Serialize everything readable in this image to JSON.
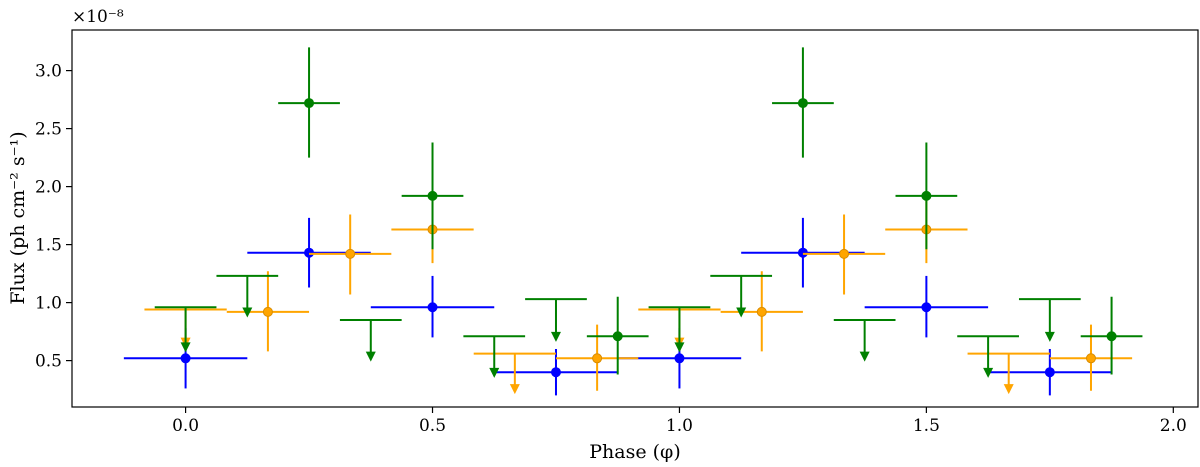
{
  "chart_data": {
    "type": "scatter",
    "title": "",
    "xlabel": "Phase (φ)",
    "ylabel": "Flux (ph cm⁻² s⁻¹)",
    "y_multiplier_label": "×10⁻⁸",
    "xlim": [
      -0.23,
      2.05
    ],
    "ylim": [
      0.1,
      3.35
    ],
    "x_ticks": [
      0.0,
      0.5,
      1.0,
      1.5,
      2.0
    ],
    "x_tick_labels": [
      "0.0",
      "0.5",
      "1.0",
      "1.5",
      "2.0"
    ],
    "y_ticks": [
      0.5,
      1.0,
      1.5,
      2.0,
      2.5,
      3.0
    ],
    "y_tick_labels": [
      "0.5",
      "1.0",
      "1.5",
      "2.0",
      "2.5",
      "3.0"
    ],
    "grid": false,
    "series": [
      {
        "color": "#0000ff",
        "points": [
          {
            "x": 0.0,
            "xerr": 0.125,
            "y": 0.52,
            "ylo": 0.26,
            "yhi": 0.78
          },
          {
            "x": 0.25,
            "xerr": 0.125,
            "y": 1.43,
            "ylo": 1.13,
            "yhi": 1.73
          },
          {
            "x": 0.5,
            "xerr": 0.125,
            "y": 0.96,
            "ylo": 0.7,
            "yhi": 1.23
          },
          {
            "x": 0.75,
            "xerr": 0.125,
            "y": 0.4,
            "ylo": 0.2,
            "yhi": 0.6
          },
          {
            "x": 1.0,
            "xerr": 0.125,
            "y": 0.52,
            "ylo": 0.26,
            "yhi": 0.78
          },
          {
            "x": 1.25,
            "xerr": 0.125,
            "y": 1.43,
            "ylo": 1.13,
            "yhi": 1.73
          },
          {
            "x": 1.5,
            "xerr": 0.125,
            "y": 0.96,
            "ylo": 0.7,
            "yhi": 1.23
          },
          {
            "x": 1.75,
            "xerr": 0.125,
            "y": 0.4,
            "ylo": 0.2,
            "yhi": 0.6
          }
        ],
        "upper_limits": []
      },
      {
        "color": "#ffa500",
        "points": [
          {
            "x": 0.1667,
            "xerr": 0.0833,
            "y": 0.92,
            "ylo": 0.58,
            "yhi": 1.27
          },
          {
            "x": 0.3333,
            "xerr": 0.0833,
            "y": 1.42,
            "ylo": 1.07,
            "yhi": 1.76
          },
          {
            "x": 0.5,
            "xerr": 0.0833,
            "y": 1.63,
            "ylo": 1.34,
            "yhi": 1.93
          },
          {
            "x": 0.8333,
            "xerr": 0.0833,
            "y": 0.52,
            "ylo": 0.24,
            "yhi": 0.81
          },
          {
            "x": 1.1667,
            "xerr": 0.0833,
            "y": 0.92,
            "ylo": 0.58,
            "yhi": 1.27
          },
          {
            "x": 1.3333,
            "xerr": 0.0833,
            "y": 1.42,
            "ylo": 1.07,
            "yhi": 1.76
          },
          {
            "x": 1.5,
            "xerr": 0.0833,
            "y": 1.63,
            "ylo": 1.34,
            "yhi": 1.93
          },
          {
            "x": 1.8333,
            "xerr": 0.0833,
            "y": 0.52,
            "ylo": 0.24,
            "yhi": 0.81
          }
        ],
        "upper_limits": [
          {
            "x": 0.0,
            "xerr": 0.0833,
            "y": 0.94,
            "tip": 0.62
          },
          {
            "x": 0.6667,
            "xerr": 0.0833,
            "y": 0.56,
            "tip": 0.22
          },
          {
            "x": 1.0,
            "xerr": 0.0833,
            "y": 0.94,
            "tip": 0.62
          },
          {
            "x": 1.6667,
            "xerr": 0.0833,
            "y": 0.56,
            "tip": 0.22
          }
        ]
      },
      {
        "color": "#008000",
        "points": [
          {
            "x": 0.25,
            "xerr": 0.0625,
            "y": 2.72,
            "ylo": 2.25,
            "yhi": 3.2
          },
          {
            "x": 0.5,
            "xerr": 0.0625,
            "y": 1.92,
            "ylo": 1.46,
            "yhi": 2.38
          },
          {
            "x": 0.875,
            "xerr": 0.0625,
            "y": 0.71,
            "ylo": 0.38,
            "yhi": 1.05
          },
          {
            "x": 1.25,
            "xerr": 0.0625,
            "y": 2.72,
            "ylo": 2.25,
            "yhi": 3.2
          },
          {
            "x": 1.5,
            "xerr": 0.0625,
            "y": 1.92,
            "ylo": 1.46,
            "yhi": 2.38
          },
          {
            "x": 1.875,
            "xerr": 0.0625,
            "y": 0.71,
            "ylo": 0.38,
            "yhi": 1.05
          }
        ],
        "upper_limits": [
          {
            "x": 0.0,
            "xerr": 0.0625,
            "y": 0.96,
            "tip": 0.58
          },
          {
            "x": 0.125,
            "xerr": 0.0625,
            "y": 1.23,
            "tip": 0.88
          },
          {
            "x": 0.375,
            "xerr": 0.0625,
            "y": 0.85,
            "tip": 0.5
          },
          {
            "x": 0.625,
            "xerr": 0.0625,
            "y": 0.71,
            "tip": 0.36
          },
          {
            "x": 0.75,
            "xerr": 0.0625,
            "y": 1.03,
            "tip": 0.67
          },
          {
            "x": 1.0,
            "xerr": 0.0625,
            "y": 0.96,
            "tip": 0.58
          },
          {
            "x": 1.125,
            "xerr": 0.0625,
            "y": 1.23,
            "tip": 0.88
          },
          {
            "x": 1.375,
            "xerr": 0.0625,
            "y": 0.85,
            "tip": 0.5
          },
          {
            "x": 1.625,
            "xerr": 0.0625,
            "y": 0.71,
            "tip": 0.36
          },
          {
            "x": 1.75,
            "xerr": 0.0625,
            "y": 1.03,
            "tip": 0.67
          }
        ]
      }
    ]
  }
}
